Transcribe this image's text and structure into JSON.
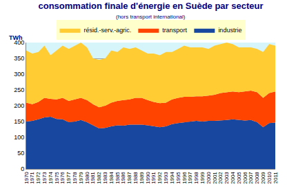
{
  "chart_data": {
    "type": "area",
    "title": "consommation finale d'énergie en Suède par secteur",
    "subtitle": "(hors transport international)",
    "y_label": "TWh",
    "stacked": true,
    "grid": true,
    "legend": "top",
    "categories": [
      "1970",
      "1971",
      "1972",
      "1973",
      "1974",
      "1975",
      "1976",
      "1977",
      "1978",
      "1979",
      "1980",
      "1981",
      "1982",
      "1983",
      "1984",
      "1985",
      "1986",
      "1987",
      "1988",
      "1989",
      "1990",
      "1991",
      "1992",
      "1993",
      "1994",
      "1995",
      "1996",
      "1997",
      "1998",
      "1999",
      "2000",
      "2001",
      "2002",
      "2003",
      "2004",
      "2005",
      "2006",
      "2007",
      "2008",
      "2009",
      "2010",
      "2011"
    ],
    "series": [
      {
        "name": "industrie",
        "color": "#17479e",
        "values": [
          150,
          152,
          157,
          163,
          165,
          158,
          157,
          148,
          150,
          155,
          148,
          138,
          128,
          130,
          135,
          138,
          137,
          140,
          140,
          140,
          138,
          135,
          132,
          135,
          142,
          145,
          147,
          150,
          152,
          150,
          152,
          152,
          153,
          155,
          157,
          155,
          153,
          155,
          148,
          132,
          145,
          147
        ]
      },
      {
        "name": "transport",
        "color": "#ff4400",
        "values": [
          60,
          53,
          55,
          62,
          57,
          62,
          68,
          67,
          70,
          70,
          70,
          67,
          67,
          70,
          75,
          77,
          81,
          80,
          85,
          85,
          80,
          77,
          76,
          75,
          78,
          80,
          81,
          78,
          78,
          80,
          80,
          83,
          87,
          88,
          88,
          88,
          92,
          93,
          95,
          93,
          95,
          98
        ]
      },
      {
        "name": "résid.-serv.-agric.",
        "color": "#ffcc33",
        "values": [
          165,
          160,
          158,
          165,
          138,
          155,
          165,
          165,
          170,
          175,
          167,
          145,
          150,
          150,
          165,
          155,
          167,
          160,
          160,
          150,
          147,
          153,
          152,
          160,
          150,
          155,
          162,
          157,
          155,
          155,
          148,
          155,
          155,
          157,
          150,
          142,
          140,
          137,
          137,
          145,
          155,
          145
        ]
      }
    ],
    "ylim": [
      0,
      400
    ],
    "yticks": [
      0,
      50,
      100,
      150,
      200,
      250,
      300,
      350,
      400
    ]
  }
}
